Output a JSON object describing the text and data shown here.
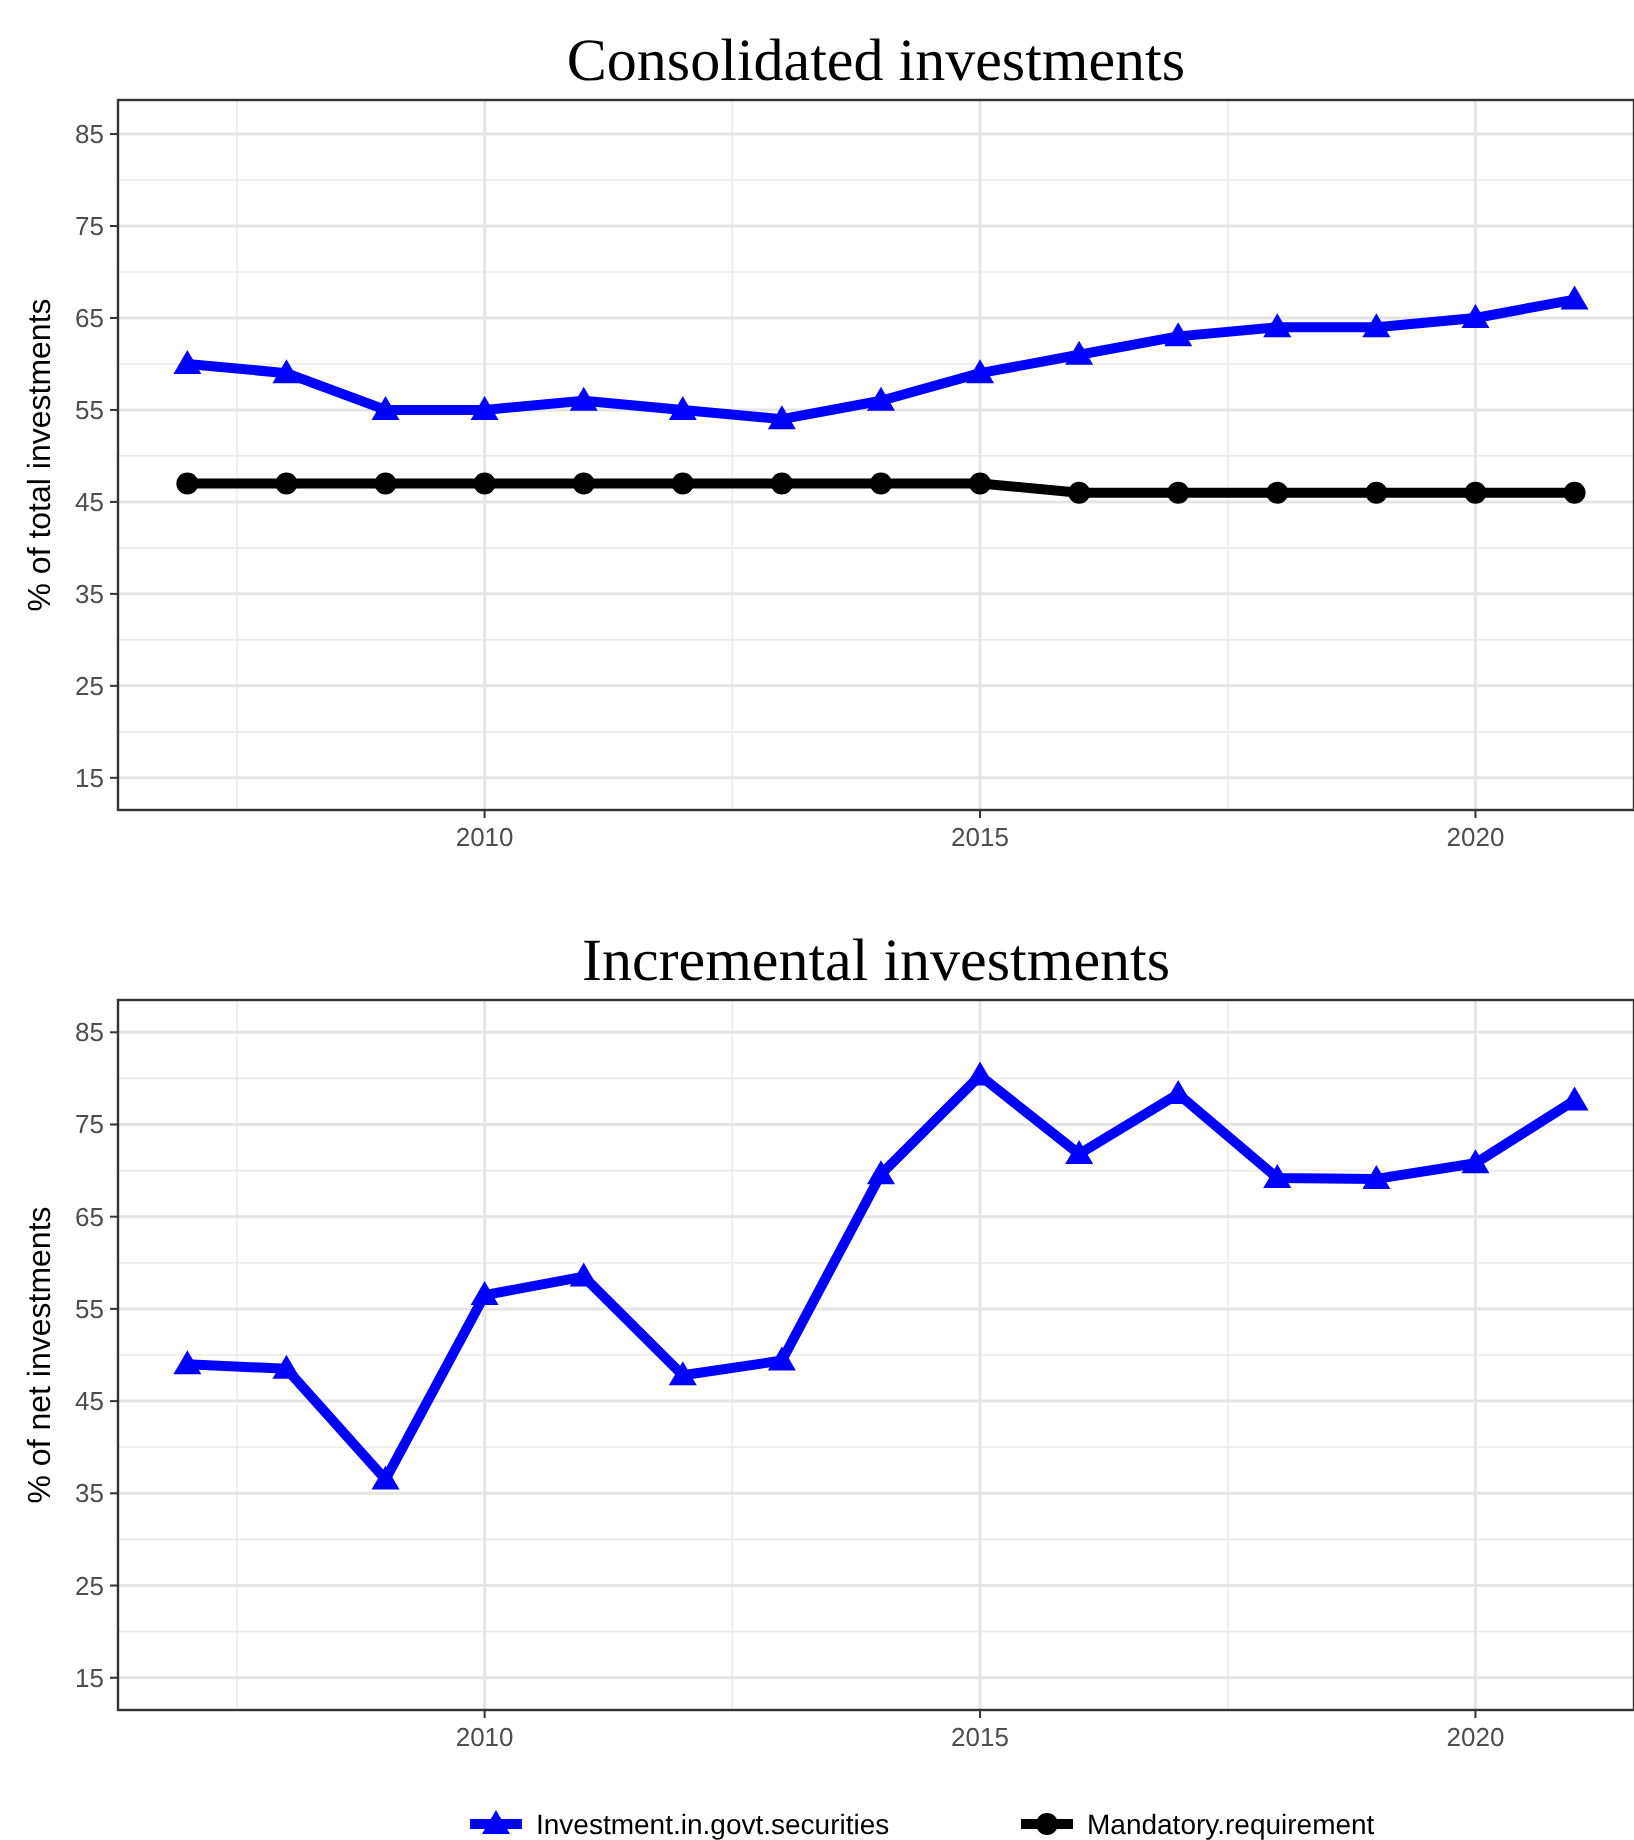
{
  "chart_data": [
    {
      "type": "line",
      "title": "Consolidated investments",
      "ylabel": "% of total investments",
      "x": [
        2007,
        2008,
        2009,
        2010,
        2011,
        2012,
        2013,
        2014,
        2015,
        2016,
        2017,
        2018,
        2019,
        2020,
        2021
      ],
      "series": [
        {
          "name": "Investment.in.govt.securities",
          "color": "#0000ff",
          "marker": "triangle",
          "values": [
            60,
            59,
            55,
            55,
            56,
            55,
            54,
            56,
            59,
            61,
            63,
            64,
            64,
            65,
            67
          ]
        },
        {
          "name": "Mandatory.requirement",
          "color": "#000000",
          "marker": "circle",
          "values": [
            47,
            47,
            47,
            47,
            47,
            47,
            47,
            47,
            47,
            46,
            46,
            46,
            46,
            46,
            46
          ]
        }
      ],
      "xlim": [
        2006.3,
        2021.6
      ],
      "xticks": [
        2010,
        2015,
        2020
      ],
      "ylim": [
        11.5,
        88.7
      ],
      "yticks": [
        15,
        25,
        35,
        45,
        55,
        65,
        75,
        85
      ],
      "grid": true,
      "legend": "bottom",
      "line_style": "solid"
    },
    {
      "type": "line",
      "title": "Incremental investments",
      "ylabel": "% of net investments",
      "x": [
        2007,
        2008,
        2009,
        2010,
        2011,
        2012,
        2013,
        2014,
        2015,
        2016,
        2017,
        2018,
        2019,
        2020,
        2021
      ],
      "series": [
        {
          "color": "#0000ff",
          "marker": "triangle",
          "values": [
            49,
            48.5,
            36.5,
            56.5,
            58.5,
            47.8,
            49.4,
            69.6,
            80.3,
            71.8,
            78.3,
            69.2,
            69.1,
            70.8,
            77.6
          ]
        }
      ],
      "xlim": [
        2006.3,
        2021.6
      ],
      "xticks": [
        2010,
        2015,
        2020
      ],
      "ylim": [
        11.5,
        88.5
      ],
      "yticks": [
        15,
        25,
        35,
        45,
        55,
        65,
        75,
        85
      ],
      "grid": true,
      "line_style": "solid"
    }
  ]
}
